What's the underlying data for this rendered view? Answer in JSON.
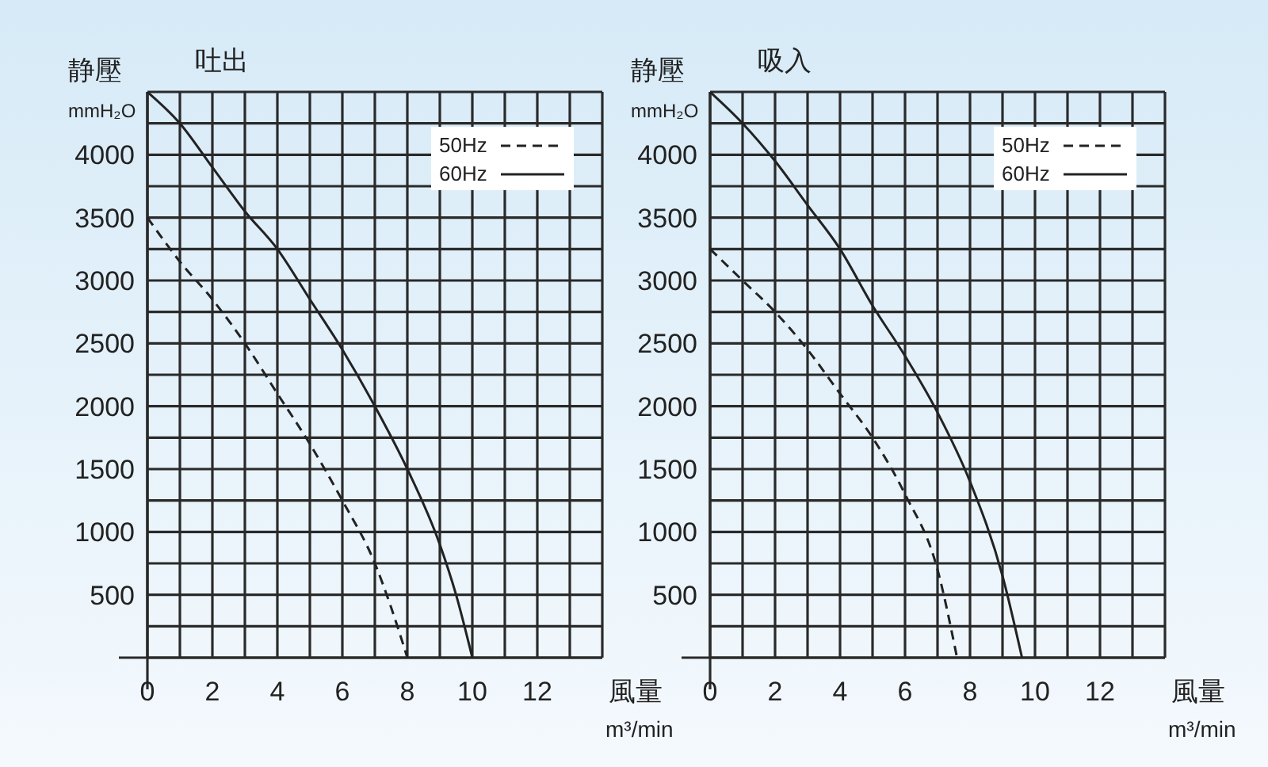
{
  "chart_data": [
    {
      "type": "line",
      "title": "吐出",
      "ylabel": "静壓\nmmH₂O",
      "xlabel": "風量\nm³/min",
      "xlim": [
        0,
        14
      ],
      "ylim": [
        0,
        4500
      ],
      "xticks": [
        0,
        {
          "value": 1,
          "label": null
        },
        2,
        {
          "value": 3,
          "label": null
        },
        4,
        {
          "value": 5,
          "label": null
        },
        6,
        {
          "value": 7,
          "label": null
        },
        8,
        {
          "value": 9,
          "label": null
        },
        10,
        {
          "value": 11,
          "label": null
        },
        12,
        {
          "value": 13,
          "label": null
        },
        {
          "value": 14,
          "label": null
        }
      ],
      "yticks": [
        {
          "value": 0,
          "label": null
        },
        {
          "value": 250,
          "label": null
        },
        500,
        {
          "value": 750,
          "label": null
        },
        1000,
        {
          "value": 1250,
          "label": null
        },
        1500,
        {
          "value": 1750,
          "label": null
        },
        2000,
        {
          "value": 2250,
          "label": null
        },
        2500,
        {
          "value": 2750,
          "label": null
        },
        3000,
        {
          "value": 3250,
          "label": null
        },
        3500,
        {
          "value": 3750,
          "label": null
        },
        4000,
        {
          "value": 4250,
          "label": null
        },
        {
          "value": 4500,
          "label": null
        }
      ],
      "grid": true,
      "legend": "top right",
      "series": [
        {
          "name": "50Hz",
          "color": "#222222",
          "line_style": "dashed",
          "x": [
            0,
            1,
            2,
            3,
            4,
            5,
            6,
            7,
            7.5,
            8
          ],
          "values": [
            3500,
            3150,
            2850,
            2500,
            2100,
            1700,
            1250,
            750,
            400,
            0
          ]
        },
        {
          "name": "60Hz",
          "color": "#222222",
          "line_style": "solid",
          "x": [
            0,
            1,
            2,
            3,
            4,
            5,
            6,
            7,
            8,
            9,
            9.5,
            10
          ],
          "values": [
            4500,
            4250,
            3900,
            3550,
            3250,
            2850,
            2450,
            2000,
            1500,
            900,
            500,
            0
          ]
        }
      ]
    },
    {
      "type": "line",
      "title": "吸入",
      "ylabel": "静壓\nmmH₂O",
      "xlabel": "風量\nm³/min",
      "xlim": [
        0,
        14
      ],
      "ylim": [
        0,
        4500
      ],
      "xticks": [
        0,
        {
          "value": 1,
          "label": null
        },
        2,
        {
          "value": 3,
          "label": null
        },
        4,
        {
          "value": 5,
          "label": null
        },
        6,
        {
          "value": 7,
          "label": null
        },
        8,
        {
          "value": 9,
          "label": null
        },
        10,
        {
          "value": 11,
          "label": null
        },
        12,
        {
          "value": 13,
          "label": null
        },
        {
          "value": 14,
          "label": null
        }
      ],
      "yticks": [
        {
          "value": 0,
          "label": null
        },
        {
          "value": 250,
          "label": null
        },
        500,
        {
          "value": 750,
          "label": null
        },
        1000,
        {
          "value": 1250,
          "label": null
        },
        1500,
        {
          "value": 1750,
          "label": null
        },
        2000,
        {
          "value": 2250,
          "label": null
        },
        2500,
        {
          "value": 2750,
          "label": null
        },
        3000,
        {
          "value": 3250,
          "label": null
        },
        3500,
        {
          "value": 3750,
          "label": null
        },
        4000,
        {
          "value": 4250,
          "label": null
        },
        {
          "value": 4500,
          "label": null
        }
      ],
      "grid": true,
      "legend": "top right",
      "series": [
        {
          "name": "50Hz",
          "color": "#222222",
          "line_style": "dashed",
          "x": [
            0,
            1,
            2,
            3,
            4,
            5,
            6,
            7,
            7.6
          ],
          "values": [
            3250,
            3000,
            2750,
            2450,
            2100,
            1750,
            1300,
            700,
            0
          ]
        },
        {
          "name": "60Hz",
          "color": "#222222",
          "line_style": "solid",
          "x": [
            0,
            1,
            2,
            3,
            4,
            5,
            6,
            7,
            8,
            9,
            9.6
          ],
          "values": [
            4500,
            4250,
            3950,
            3600,
            3250,
            2800,
            2400,
            1950,
            1400,
            650,
            0
          ]
        }
      ]
    }
  ]
}
